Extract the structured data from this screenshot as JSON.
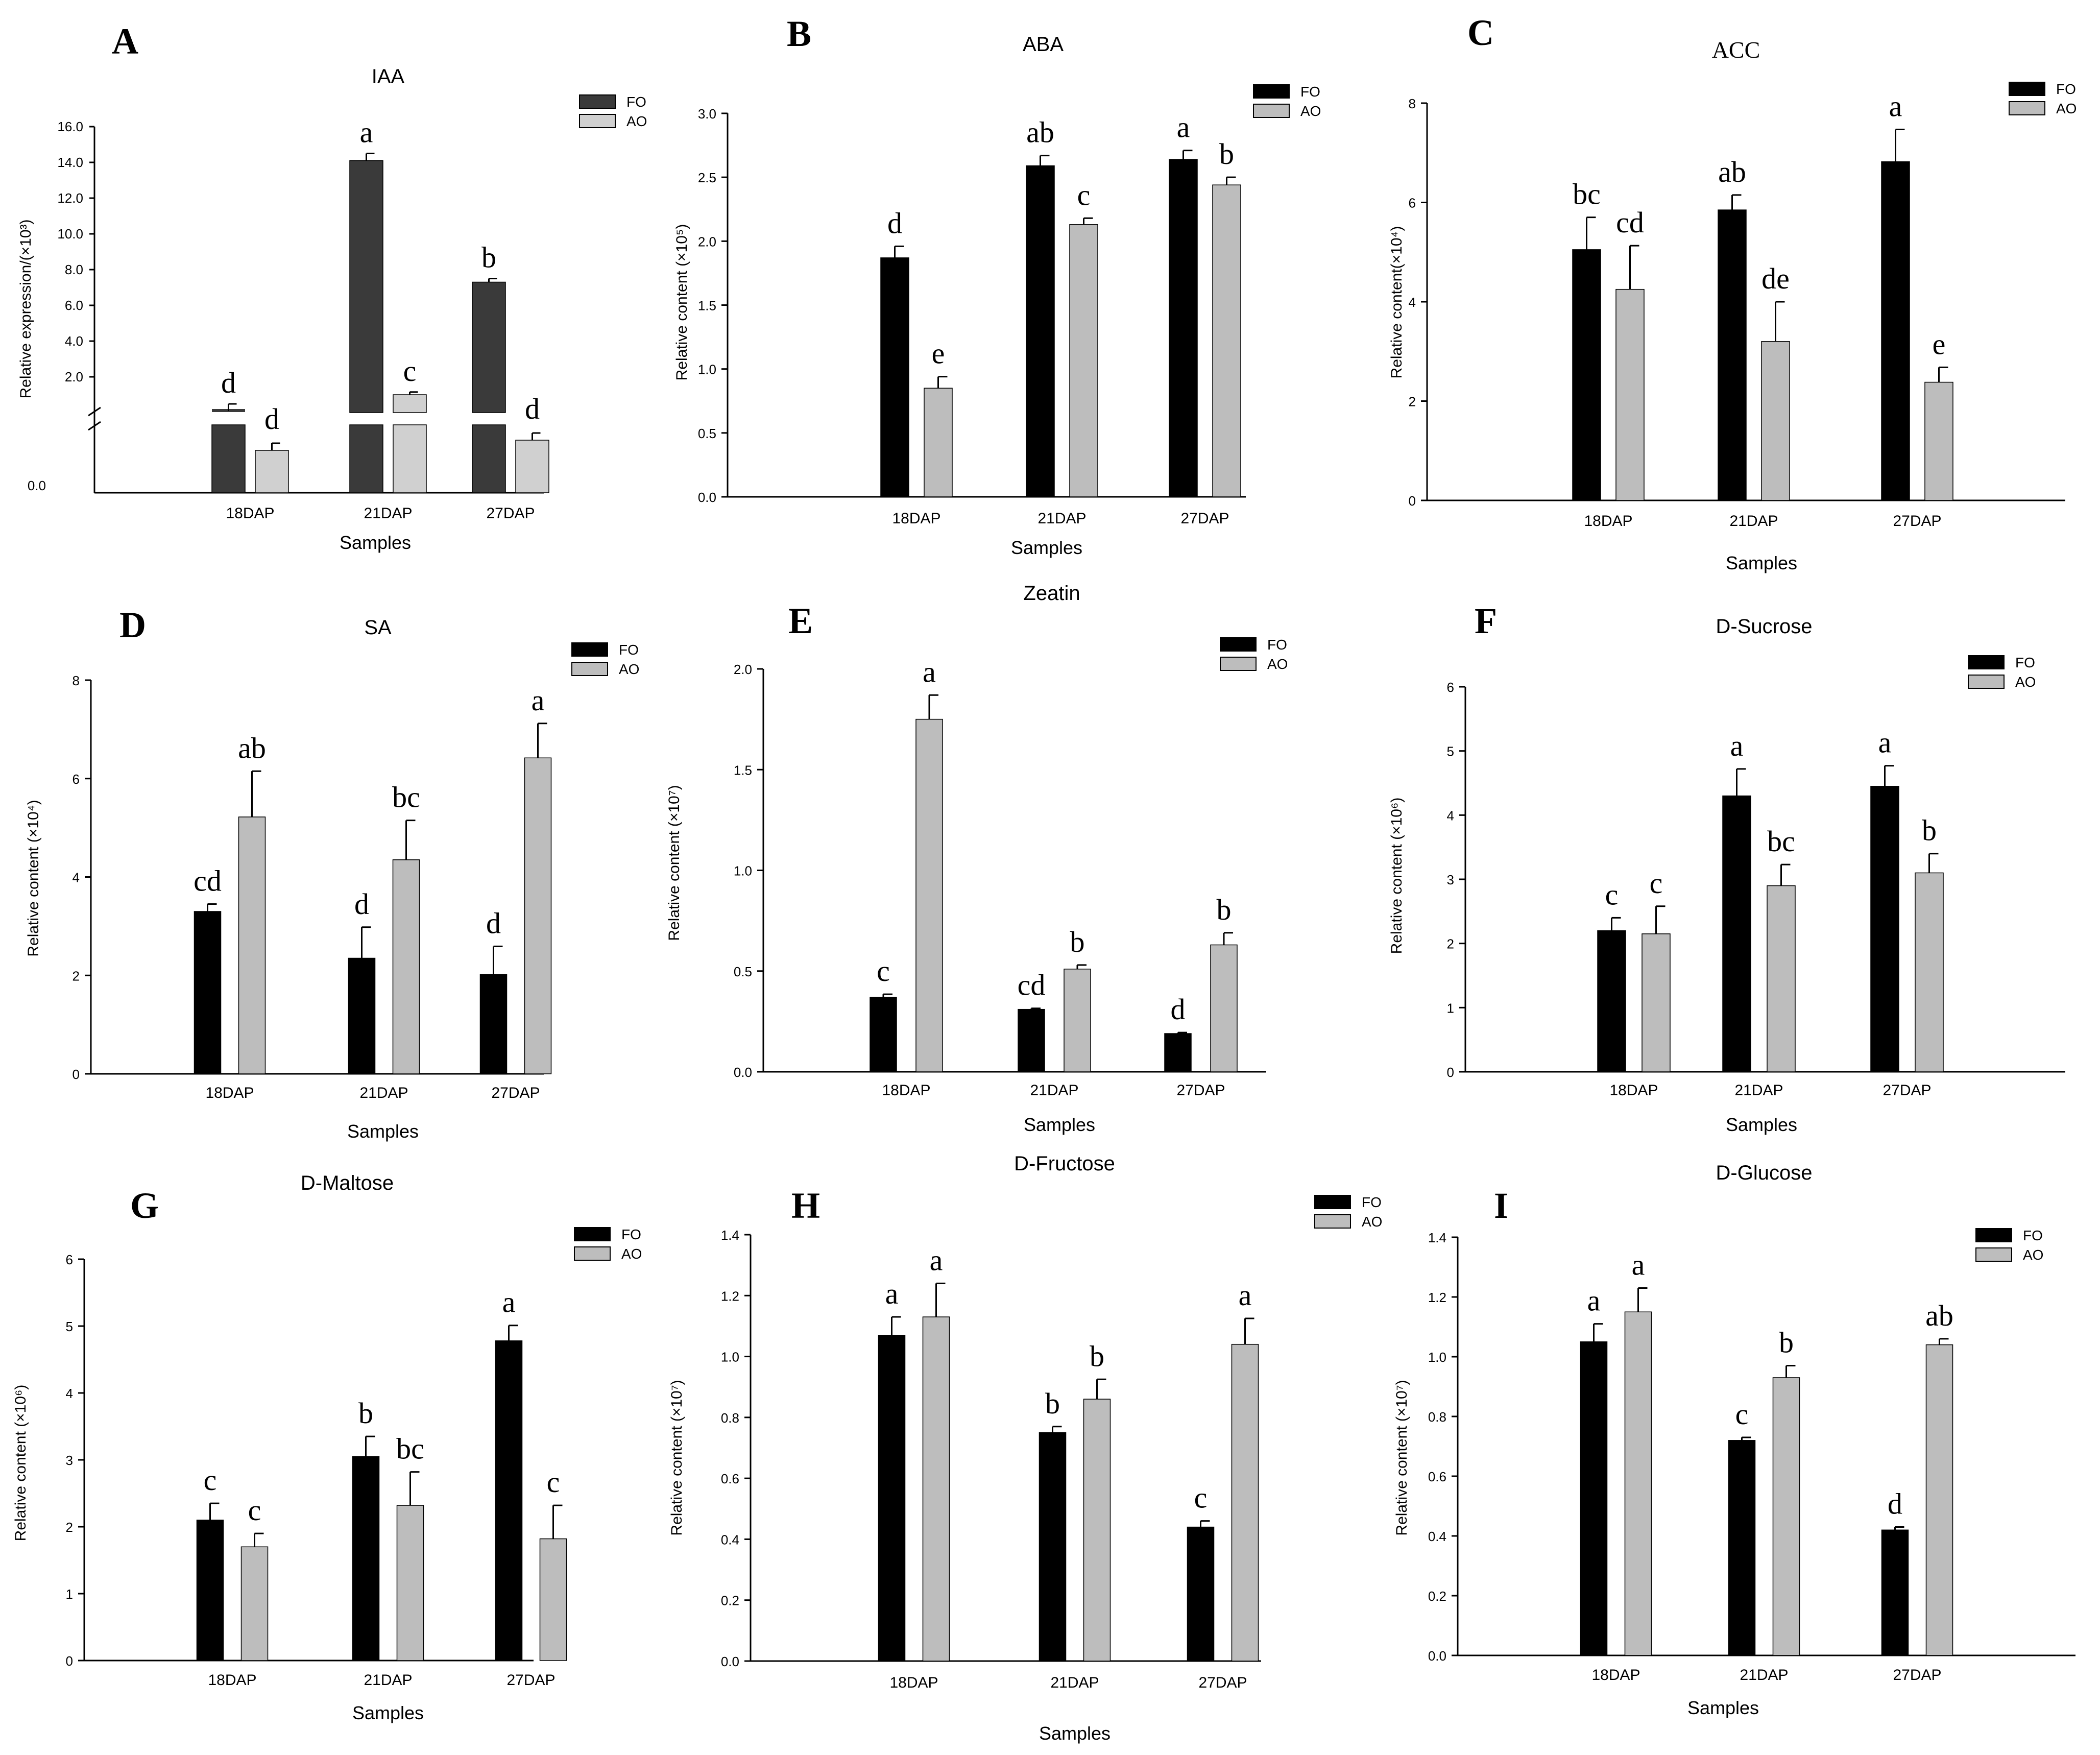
{
  "chart_data": [
    {
      "id": "IAA",
      "panel_label": "A",
      "type": "bar",
      "title": "IAA",
      "ylabel": "Relative expression/(×10³)",
      "xlabel": "Samples",
      "categories": [
        "18DAP",
        "21DAP",
        "27DAP"
      ],
      "axis_break": true,
      "ylim": [
        0,
        16
      ],
      "yticks_upper": [
        "2.0",
        "4.0",
        "6.0",
        "8.0",
        "10.0",
        "12.0",
        "14.0",
        "16.0"
      ],
      "ytick_zero": "0.0",
      "series": [
        {
          "name": "FO",
          "color": "#3a3a3a",
          "values": [
            0.2,
            14.1,
            7.3
          ],
          "errors": [
            0.1,
            0.4,
            0.2
          ],
          "letters": [
            "d",
            "a",
            "b"
          ]
        },
        {
          "name": "AO",
          "color": "#d0d0d0",
          "values": [
            0.15,
            1.0,
            0.2
          ],
          "errors": [
            0.05,
            0.15,
            0.08
          ],
          "letters": [
            "d",
            "c",
            "d"
          ]
        }
      ],
      "legend": [
        "FO",
        "AO"
      ]
    },
    {
      "id": "ABA",
      "panel_label": "B",
      "type": "bar",
      "title": "ABA",
      "ylabel": "Relative content (×10⁵)",
      "xlabel": "Samples",
      "categories": [
        "18DAP",
        "21DAP",
        "27DAP"
      ],
      "ylim": [
        0,
        3.0
      ],
      "yticks": [
        "0.0",
        "0.5",
        "1.0",
        "1.5",
        "2.0",
        "2.5",
        "3.0"
      ],
      "series": [
        {
          "name": "FO",
          "color": "#000000",
          "values": [
            1.87,
            2.59,
            2.64
          ],
          "errors": [
            0.09,
            0.08,
            0.07
          ],
          "letters": [
            "d",
            "ab",
            "a"
          ]
        },
        {
          "name": "AO",
          "color": "#bdbdbd",
          "values": [
            0.85,
            2.13,
            2.44
          ],
          "errors": [
            0.09,
            0.05,
            0.06
          ],
          "letters": [
            "e",
            "c",
            "b"
          ]
        }
      ],
      "legend": [
        "FO",
        "AO"
      ]
    },
    {
      "id": "ACC",
      "panel_label": "C",
      "type": "bar",
      "title": "ACC",
      "ylabel": "Relative content(×10⁴)",
      "xlabel": "Samples",
      "categories": [
        "18DAP",
        "21DAP",
        "27DAP"
      ],
      "ylim": [
        0,
        8
      ],
      "yticks": [
        "0",
        "2",
        "4",
        "6",
        "8"
      ],
      "series": [
        {
          "name": "FO",
          "color": "#000000",
          "values": [
            5.05,
            5.85,
            6.82
          ],
          "errors": [
            0.65,
            0.3,
            0.65
          ],
          "letters": [
            "bc",
            "ab",
            "a"
          ]
        },
        {
          "name": "AO",
          "color": "#bdbdbd",
          "values": [
            4.25,
            3.2,
            2.38
          ],
          "errors": [
            0.88,
            0.8,
            0.3
          ],
          "letters": [
            "cd",
            "de",
            "e"
          ]
        }
      ],
      "legend": [
        "FO",
        "AO"
      ]
    },
    {
      "id": "SA",
      "panel_label": "D",
      "type": "bar",
      "title": "SA",
      "ylabel": "Relative content (×10⁴)",
      "xlabel": "Samples",
      "categories": [
        "18DAP",
        "21DAP",
        "27DAP"
      ],
      "ylim": [
        0,
        8
      ],
      "yticks": [
        "0",
        "2",
        "4",
        "6",
        "8"
      ],
      "series": [
        {
          "name": "FO",
          "color": "#000000",
          "values": [
            3.3,
            2.35,
            2.02
          ],
          "errors": [
            0.15,
            0.63,
            0.57
          ],
          "letters": [
            "cd",
            "d",
            "d"
          ]
        },
        {
          "name": "AO",
          "color": "#bdbdbd",
          "values": [
            5.22,
            4.35,
            6.42
          ],
          "errors": [
            0.93,
            0.8,
            0.7
          ],
          "letters": [
            "ab",
            "bc",
            "a"
          ]
        }
      ],
      "legend": [
        "FO",
        "AO"
      ]
    },
    {
      "id": "Zeatin",
      "panel_label": "E",
      "type": "bar",
      "title": "Zeatin",
      "ylabel": "Relative content (×10⁷)",
      "xlabel": "Samples",
      "categories": [
        "18DAP",
        "21DAP",
        "27DAP"
      ],
      "ylim": [
        0,
        2.0
      ],
      "yticks": [
        "0.0",
        "0.5",
        "1.0",
        "1.5",
        "2.0"
      ],
      "series": [
        {
          "name": "FO",
          "color": "#000000",
          "values": [
            0.37,
            0.31,
            0.19
          ],
          "errors": [
            0.015,
            0.005,
            0.005
          ],
          "letters": [
            "c",
            "cd",
            "d"
          ]
        },
        {
          "name": "AO",
          "color": "#bdbdbd",
          "values": [
            1.75,
            0.51,
            0.63
          ],
          "errors": [
            0.12,
            0.02,
            0.06
          ],
          "letters": [
            "a",
            "b",
            "b"
          ]
        }
      ],
      "legend": [
        "FO",
        "AO"
      ]
    },
    {
      "id": "D-Sucrose",
      "panel_label": "F",
      "type": "bar",
      "title": "D-Sucrose",
      "ylabel": "Relative content (×10⁶)",
      "xlabel": "Samples",
      "categories": [
        "18DAP",
        "21DAP",
        "27DAP"
      ],
      "ylim": [
        0,
        6
      ],
      "yticks": [
        "0",
        "1",
        "2",
        "3",
        "4",
        "5",
        "6"
      ],
      "series": [
        {
          "name": "FO",
          "color": "#000000",
          "values": [
            2.2,
            4.3,
            4.45
          ],
          "errors": [
            0.2,
            0.42,
            0.32
          ],
          "letters": [
            "c",
            "a",
            "a"
          ]
        },
        {
          "name": "AO",
          "color": "#bdbdbd",
          "values": [
            2.15,
            2.9,
            3.1
          ],
          "errors": [
            0.43,
            0.33,
            0.3
          ],
          "letters": [
            "c",
            "bc",
            "b"
          ]
        }
      ],
      "legend": [
        "FO",
        "AO"
      ]
    },
    {
      "id": "D-Maltose",
      "panel_label": "G",
      "type": "bar",
      "title": "D-Maltose",
      "ylabel": "Relative content (×10⁶)",
      "xlabel": "Samples",
      "categories": [
        "18DAP",
        "21DAP",
        "27DAP"
      ],
      "ylim": [
        0,
        6
      ],
      "yticks": [
        "0",
        "1",
        "2",
        "3",
        "4",
        "5",
        "6"
      ],
      "series": [
        {
          "name": "FO",
          "color": "#000000",
          "values": [
            2.1,
            3.05,
            4.78
          ],
          "errors": [
            0.25,
            0.3,
            0.23
          ],
          "letters": [
            "c",
            "b",
            "a"
          ]
        },
        {
          "name": "AO",
          "color": "#bdbdbd",
          "values": [
            1.7,
            2.32,
            1.82
          ],
          "errors": [
            0.2,
            0.5,
            0.5
          ],
          "letters": [
            "c",
            "bc",
            "c"
          ]
        }
      ],
      "legend": [
        "FO",
        "AO"
      ]
    },
    {
      "id": "D-Fructose",
      "panel_label": "H",
      "type": "bar",
      "title": "D-Fructose",
      "ylabel": "Relative content (×10⁷)",
      "xlabel": "Samples",
      "categories": [
        "18DAP",
        "21DAP",
        "27DAP"
      ],
      "ylim": [
        0,
        1.4
      ],
      "yticks": [
        "0.0",
        "0.2",
        "0.4",
        "0.6",
        "0.8",
        "1.0",
        "1.2",
        "1.4"
      ],
      "series": [
        {
          "name": "FO",
          "color": "#000000",
          "values": [
            1.07,
            0.75,
            0.44
          ],
          "errors": [
            0.06,
            0.02,
            0.02
          ],
          "letters": [
            "a",
            "b",
            "c"
          ]
        },
        {
          "name": "AO",
          "color": "#bdbdbd",
          "values": [
            1.13,
            0.86,
            1.04
          ],
          "errors": [
            0.11,
            0.065,
            0.085
          ],
          "letters": [
            "a",
            "b",
            "a"
          ]
        }
      ],
      "legend": [
        "FO",
        "AO"
      ]
    },
    {
      "id": "D-Glucose",
      "panel_label": "I",
      "type": "bar",
      "title": "D-Glucose",
      "ylabel": "Relative content (×10⁷)",
      "xlabel": "Samples",
      "categories": [
        "18DAP",
        "21DAP",
        "27DAP"
      ],
      "ylim": [
        0,
        1.4
      ],
      "yticks": [
        "0.0",
        "0.2",
        "0.4",
        "0.6",
        "0.8",
        "1.0",
        "1.2",
        "1.4"
      ],
      "series": [
        {
          "name": "FO",
          "color": "#000000",
          "values": [
            1.05,
            0.72,
            0.42
          ],
          "errors": [
            0.06,
            0.01,
            0.01
          ],
          "letters": [
            "a",
            "c",
            "d"
          ]
        },
        {
          "name": "AO",
          "color": "#bdbdbd",
          "values": [
            1.15,
            0.93,
            1.04
          ],
          "errors": [
            0.08,
            0.04,
            0.02
          ],
          "letters": [
            "a",
            "b",
            "ab"
          ]
        }
      ],
      "legend": [
        "FO",
        "AO"
      ]
    }
  ]
}
